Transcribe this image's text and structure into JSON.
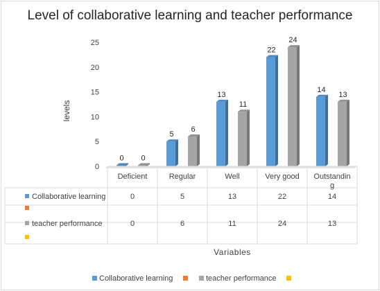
{
  "chart_data": {
    "type": "bar",
    "title": "Level of collaborative learning and teacher performance",
    "xlabel": "Variables",
    "ylabel": "levels",
    "ylim": [
      0,
      25
    ],
    "yticks": [
      0,
      5,
      10,
      15,
      20,
      25
    ],
    "categories": [
      "Deficient",
      "Regular",
      "Well",
      "Very good",
      "Outstanding"
    ],
    "series": [
      {
        "name": "Collaborative learning",
        "values": [
          0,
          5,
          13,
          22,
          14
        ],
        "color": "#5b9bd5"
      },
      {
        "name": "",
        "values": [
          null,
          null,
          null,
          null,
          null
        ],
        "color": "#ed7d31"
      },
      {
        "name": "teacher performance",
        "values": [
          0,
          6,
          11,
          24,
          13
        ],
        "color": "#a5a5a5"
      },
      {
        "name": "",
        "values": [
          null,
          null,
          null,
          null,
          null
        ],
        "color": "#ffc000"
      }
    ],
    "legend": "bottom",
    "data_table": true,
    "grid": false
  }
}
